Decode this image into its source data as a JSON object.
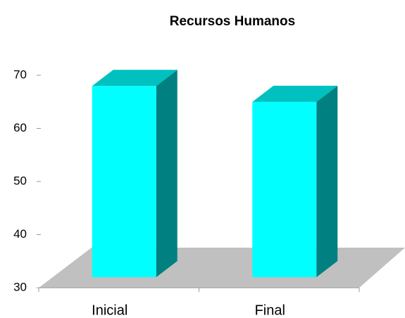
{
  "chart_data": {
    "type": "bar3d",
    "title": "Recursos Humanos",
    "categories": [
      "Inicial",
      "Final"
    ],
    "values": [
      66,
      63
    ],
    "color": "#00ffff",
    "ylim": [
      30,
      70
    ],
    "yticks": [
      30,
      40,
      50,
      60,
      70
    ]
  }
}
